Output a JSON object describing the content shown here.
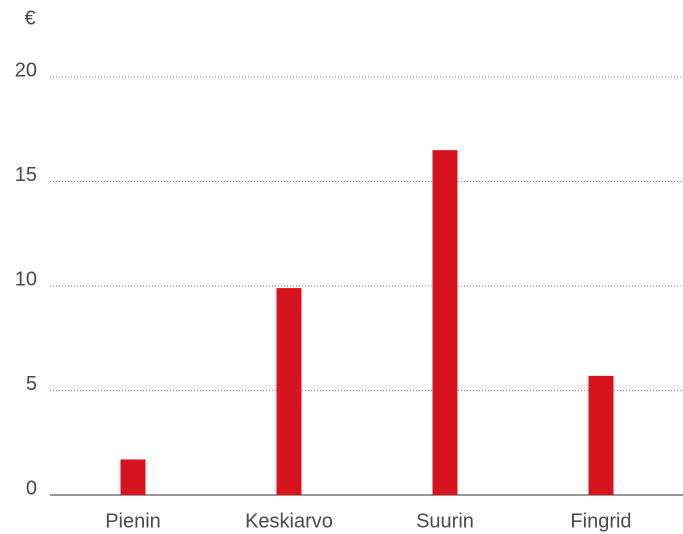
{
  "chart_data": {
    "type": "bar",
    "y_label": "€",
    "categories": [
      "Pienin",
      "Keskiarvo",
      "Suurin",
      "Fingrid"
    ],
    "values": [
      1.7,
      9.9,
      16.5,
      5.7
    ],
    "color": "#d7141e",
    "ylim": [
      0,
      20
    ],
    "yticks": [
      0,
      5,
      10,
      15,
      20
    ],
    "grid": true
  }
}
